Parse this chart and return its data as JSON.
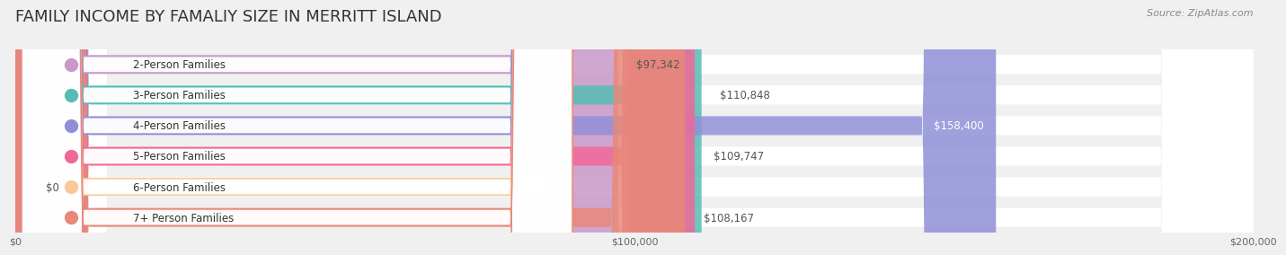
{
  "title": "FAMILY INCOME BY FAMALIY SIZE IN MERRITT ISLAND",
  "source": "Source: ZipAtlas.com",
  "categories": [
    "2-Person Families",
    "3-Person Families",
    "4-Person Families",
    "5-Person Families",
    "6-Person Families",
    "7+ Person Families"
  ],
  "values": [
    97342,
    110848,
    158400,
    109747,
    0,
    108167
  ],
  "value_labels": [
    "$97,342",
    "$110,848",
    "$158,400",
    "$109,747",
    "$0",
    "$108,167"
  ],
  "bar_colors": [
    "#c898c8",
    "#55bdb5",
    "#9090d8",
    "#f06898",
    "#f8c898",
    "#e88878"
  ],
  "label_colors": [
    "#c898c8",
    "#55bdb5",
    "#9090d8",
    "#f06898",
    "#f8c898",
    "#e88878"
  ],
  "bar_bg_color": "#f0f0f0",
  "row_bg_color": "#f5f5f5",
  "xlim": [
    0,
    200000
  ],
  "xticks": [
    0,
    100000,
    200000
  ],
  "xtick_labels": [
    "$0",
    "$100,000",
    "$200,000"
  ],
  "title_fontsize": 13,
  "label_fontsize": 8.5,
  "value_fontsize": 8.5,
  "background_color": "#f0f0f0"
}
